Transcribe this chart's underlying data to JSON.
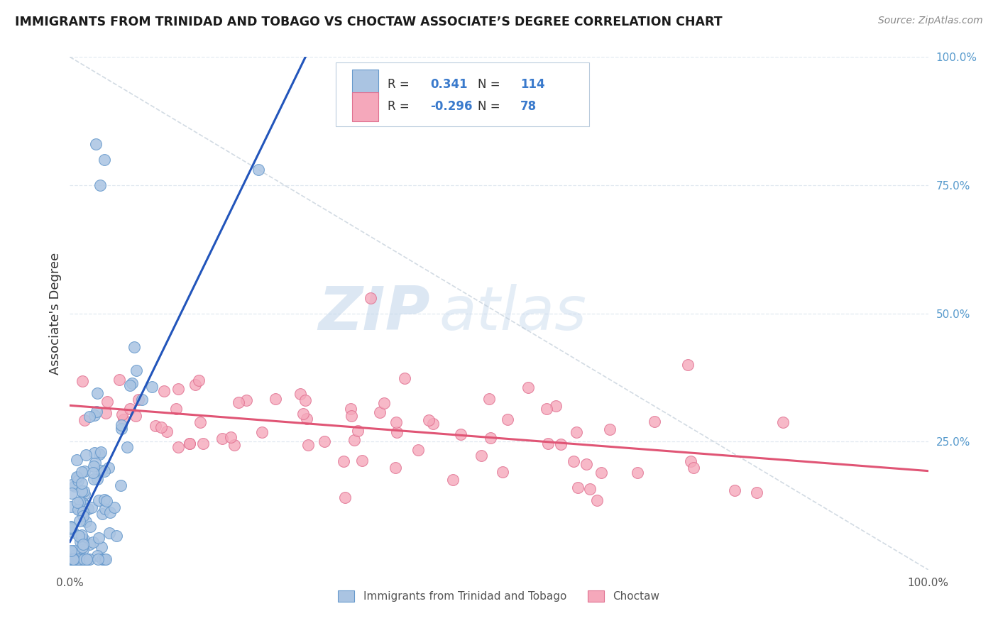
{
  "title": "IMMIGRANTS FROM TRINIDAD AND TOBAGO VS CHOCTAW ASSOCIATE’S DEGREE CORRELATION CHART",
  "source": "Source: ZipAtlas.com",
  "ylabel": "Associate's Degree",
  "series1_label": "Immigrants from Trinidad and Tobago",
  "series2_label": "Choctaw",
  "series1_R": 0.341,
  "series1_N": 114,
  "series2_R": -0.296,
  "series2_N": 78,
  "series1_color": "#aac4e2",
  "series2_color": "#f5a8bb",
  "series1_edge": "#6699cc",
  "series2_edge": "#e07090",
  "trend1_color": "#2255bb",
  "trend2_color": "#e05575",
  "right_yticks": [
    "100.0%",
    "75.0%",
    "50.0%",
    "25.0%"
  ],
  "right_ytick_vals": [
    1.0,
    0.75,
    0.5,
    0.25
  ],
  "watermark_zip": "ZIP",
  "watermark_atlas": "atlas",
  "background": "#ffffff",
  "grid_color": "#e0e8f0",
  "xlim": [
    0,
    1.0
  ],
  "ylim": [
    0,
    1.0
  ]
}
